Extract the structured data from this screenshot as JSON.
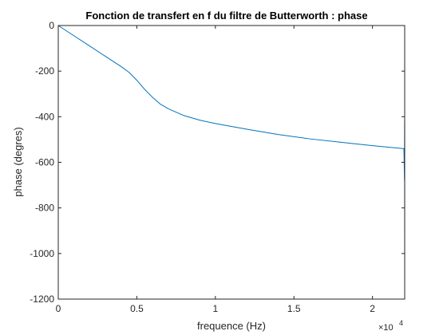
{
  "chart_data": {
    "type": "line",
    "title": "Fonction de transfert en f du filtre de Butterworth : phase",
    "xlabel": "frequence (Hz)",
    "ylabel": "phase (degres)",
    "x_exponent_base": "×10",
    "x_exponent_power": "4",
    "xlim": [
      0,
      22050
    ],
    "ylim": [
      -1200,
      0
    ],
    "x_ticks": [
      0,
      5000,
      10000,
      15000,
      20000
    ],
    "x_tick_labels": [
      "0",
      "0.5",
      "1",
      "1.5",
      "2"
    ],
    "y_ticks": [
      0,
      -200,
      -400,
      -600,
      -800,
      -1000,
      -1200
    ],
    "y_tick_labels": [
      "0",
      "-200",
      "-400",
      "-600",
      "-800",
      "-1000",
      "-1200"
    ],
    "grid": false,
    "box": true,
    "line_color": "#0072bd",
    "series": [
      {
        "x": [
          0,
          1000,
          2000,
          3000,
          4000,
          4500,
          5000,
          5500,
          6000,
          6500,
          7000,
          8000,
          9000,
          10000,
          12000,
          14000,
          16000,
          18000,
          20000,
          22000,
          22040,
          22045,
          22050
        ],
        "y": [
          0,
          -45,
          -90,
          -135,
          -180,
          -205,
          -240,
          -280,
          -315,
          -345,
          -365,
          -395,
          -415,
          -430,
          -455,
          -478,
          -497,
          -512,
          -527,
          -540,
          -680,
          -420,
          -1200
        ]
      }
    ]
  }
}
